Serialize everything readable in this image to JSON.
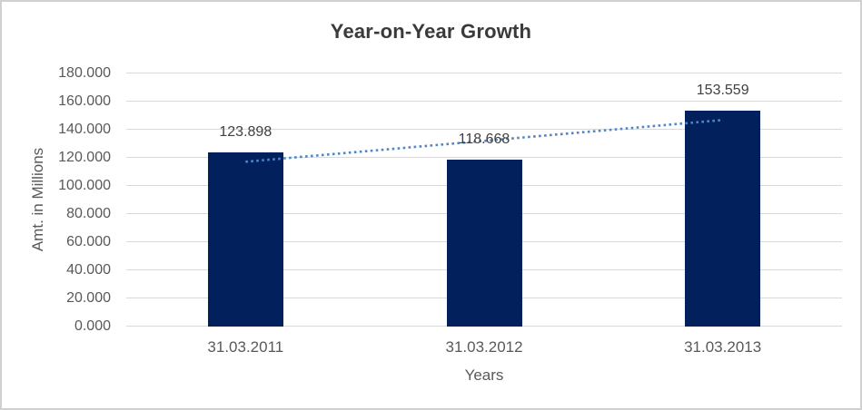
{
  "chart_data": {
    "type": "bar",
    "title": "Year-on-Year Growth",
    "xlabel": "Years",
    "ylabel": "Amt. in Millions",
    "categories": [
      "31.03.2011",
      "31.03.2012",
      "31.03.2013"
    ],
    "values": [
      123.898,
      118.668,
      153.559
    ],
    "value_labels": [
      "123.898",
      "118.668",
      "153.559"
    ],
    "ylim": [
      0,
      180
    ],
    "ytick_step": 20,
    "ytick_labels": [
      "0.000",
      "20.000",
      "40.000",
      "60.000",
      "80.000",
      "100.000",
      "120.000",
      "140.000",
      "160.000",
      "180.000"
    ],
    "grid": true,
    "legend": "none",
    "trendline": {
      "type": "linear",
      "style": "dotted",
      "span": "first-bar-center to last-bar-center"
    },
    "colors": {
      "bar": "#02215c",
      "trendline": "#4e86c8",
      "gridline": "#d9d9d9",
      "axis_text": "#595959",
      "title_text": "#3a3a3a",
      "data_label_text": "#404040",
      "frame_border": "#d0d0d0",
      "background": "#ffffff"
    }
  }
}
